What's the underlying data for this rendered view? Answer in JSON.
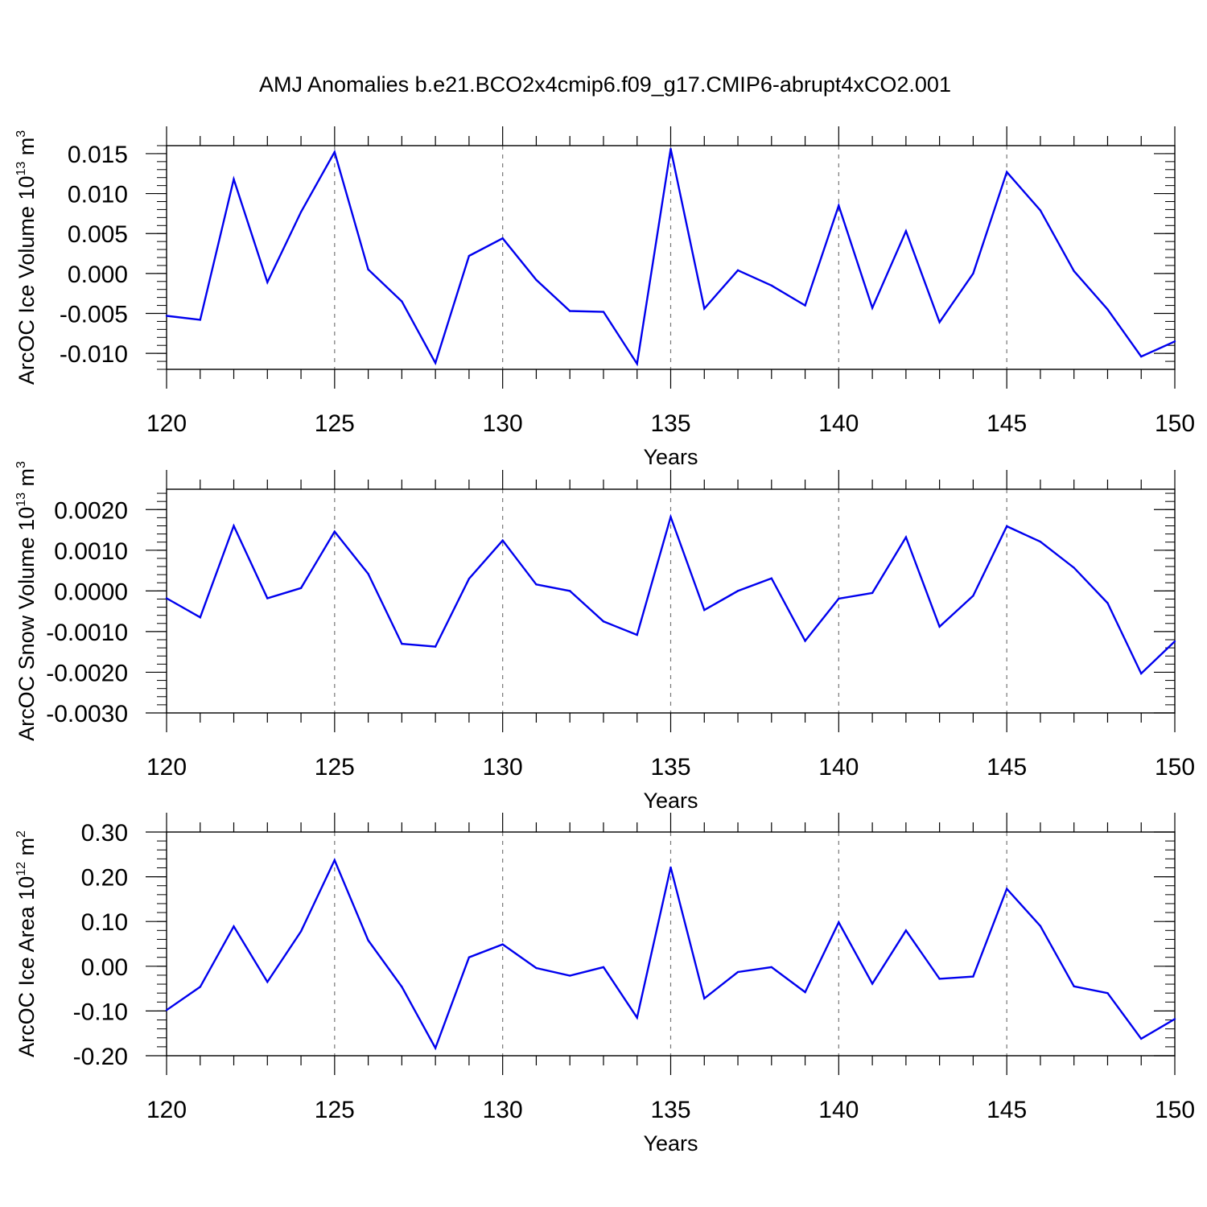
{
  "figure": {
    "title": "AMJ Anomalies b.e21.BCO2x4cmip6.f09_g17.CMIP6-abrupt4xCO2.001"
  },
  "colors": {
    "line": "#0000ee",
    "axis": "#000000",
    "grid": "#777777",
    "background": "#ffffff"
  },
  "chart_data": [
    {
      "type": "line",
      "xlabel": "Years",
      "ylabel": {
        "base": "ArcOC Ice Volume 10",
        "exp1": "13",
        "mid": " m",
        "exp2": "3"
      },
      "xlim": [
        120,
        150
      ],
      "ylim": [
        -0.012,
        0.016
      ],
      "xticks": [
        "120",
        "125",
        "130",
        "135",
        "140",
        "145",
        "150"
      ],
      "yticks": [
        "-0.010",
        "-0.005",
        "0.000",
        "0.005",
        "0.010",
        "0.015"
      ],
      "grid": "vertical dashed at major x ticks",
      "series": [
        {
          "x": [
            120,
            121,
            122,
            123,
            124,
            125,
            126,
            127,
            128,
            129,
            130,
            131,
            132,
            133,
            134,
            135,
            136,
            137,
            138,
            139,
            140,
            141,
            142,
            143,
            144,
            145,
            146,
            147,
            148,
            149,
            150
          ],
          "values": [
            -0.0053,
            -0.0058,
            0.0118,
            -0.0011,
            0.0077,
            0.0152,
            0.0005,
            -0.0035,
            -0.0112,
            0.0022,
            0.0044,
            -0.0008,
            -0.0047,
            -0.0048,
            -0.0113,
            0.0156,
            -0.0044,
            0.0004,
            -0.0015,
            -0.004,
            0.0085,
            -0.0043,
            0.0053,
            -0.0061,
            0.0,
            0.0127,
            0.0079,
            0.0003,
            -0.0045,
            -0.0104,
            -0.0085
          ]
        }
      ]
    },
    {
      "type": "line",
      "xlabel": "Years",
      "ylabel": {
        "base": "ArcOC Snow Volume 10",
        "exp1": "13",
        "mid": " m",
        "exp2": "3"
      },
      "xlim": [
        120,
        150
      ],
      "ylim": [
        -0.003,
        0.0025
      ],
      "xticks": [
        "120",
        "125",
        "130",
        "135",
        "140",
        "145",
        "150"
      ],
      "yticks": [
        "-0.0030",
        "-0.0020",
        "-0.0010",
        "0.0000",
        "0.0010",
        "0.0020"
      ],
      "grid": "vertical dashed at major x ticks",
      "series": [
        {
          "x": [
            120,
            121,
            122,
            123,
            124,
            125,
            126,
            127,
            128,
            129,
            130,
            131,
            132,
            133,
            134,
            135,
            136,
            137,
            138,
            139,
            140,
            141,
            142,
            143,
            144,
            145,
            146,
            147,
            148,
            149,
            150
          ],
          "values": [
            -0.00018,
            -0.00065,
            0.0016,
            -0.00018,
            7e-05,
            0.00146,
            0.00042,
            -0.0013,
            -0.00137,
            0.0003,
            0.00124,
            0.00016,
            0.0,
            -0.00075,
            -0.00108,
            0.00182,
            -0.00047,
            0.0,
            0.00031,
            -0.00123,
            -0.00019,
            -5e-05,
            0.00132,
            -0.00088,
            -0.00012,
            0.00159,
            0.00121,
            0.00057,
            -0.0003,
            -0.00203,
            -0.00124
          ]
        }
      ]
    },
    {
      "type": "line",
      "xlabel": "Years",
      "ylabel": {
        "base": "ArcOC Ice Area 10",
        "exp1": "12",
        "mid": " m",
        "exp2": "2"
      },
      "xlim": [
        120,
        150
      ],
      "ylim": [
        -0.2,
        0.3
      ],
      "xticks": [
        "120",
        "125",
        "130",
        "135",
        "140",
        "145",
        "150"
      ],
      "yticks": [
        "-0.20",
        "-0.10",
        "0.00",
        "0.10",
        "0.20",
        "0.30"
      ],
      "grid": "vertical dashed at major x ticks",
      "series": [
        {
          "x": [
            120,
            121,
            122,
            123,
            124,
            125,
            126,
            127,
            128,
            129,
            130,
            131,
            132,
            133,
            134,
            135,
            136,
            137,
            138,
            139,
            140,
            141,
            142,
            143,
            144,
            145,
            146,
            147,
            148,
            149,
            150
          ],
          "values": [
            -0.098,
            -0.046,
            0.089,
            -0.035,
            0.078,
            0.237,
            0.058,
            -0.046,
            -0.183,
            0.02,
            0.049,
            -0.004,
            -0.021,
            -0.002,
            -0.115,
            0.221,
            -0.072,
            -0.013,
            -0.002,
            -0.058,
            0.098,
            -0.039,
            0.08,
            -0.028,
            -0.023,
            0.173,
            0.09,
            -0.045,
            -0.06,
            -0.162,
            -0.118
          ]
        }
      ]
    }
  ]
}
